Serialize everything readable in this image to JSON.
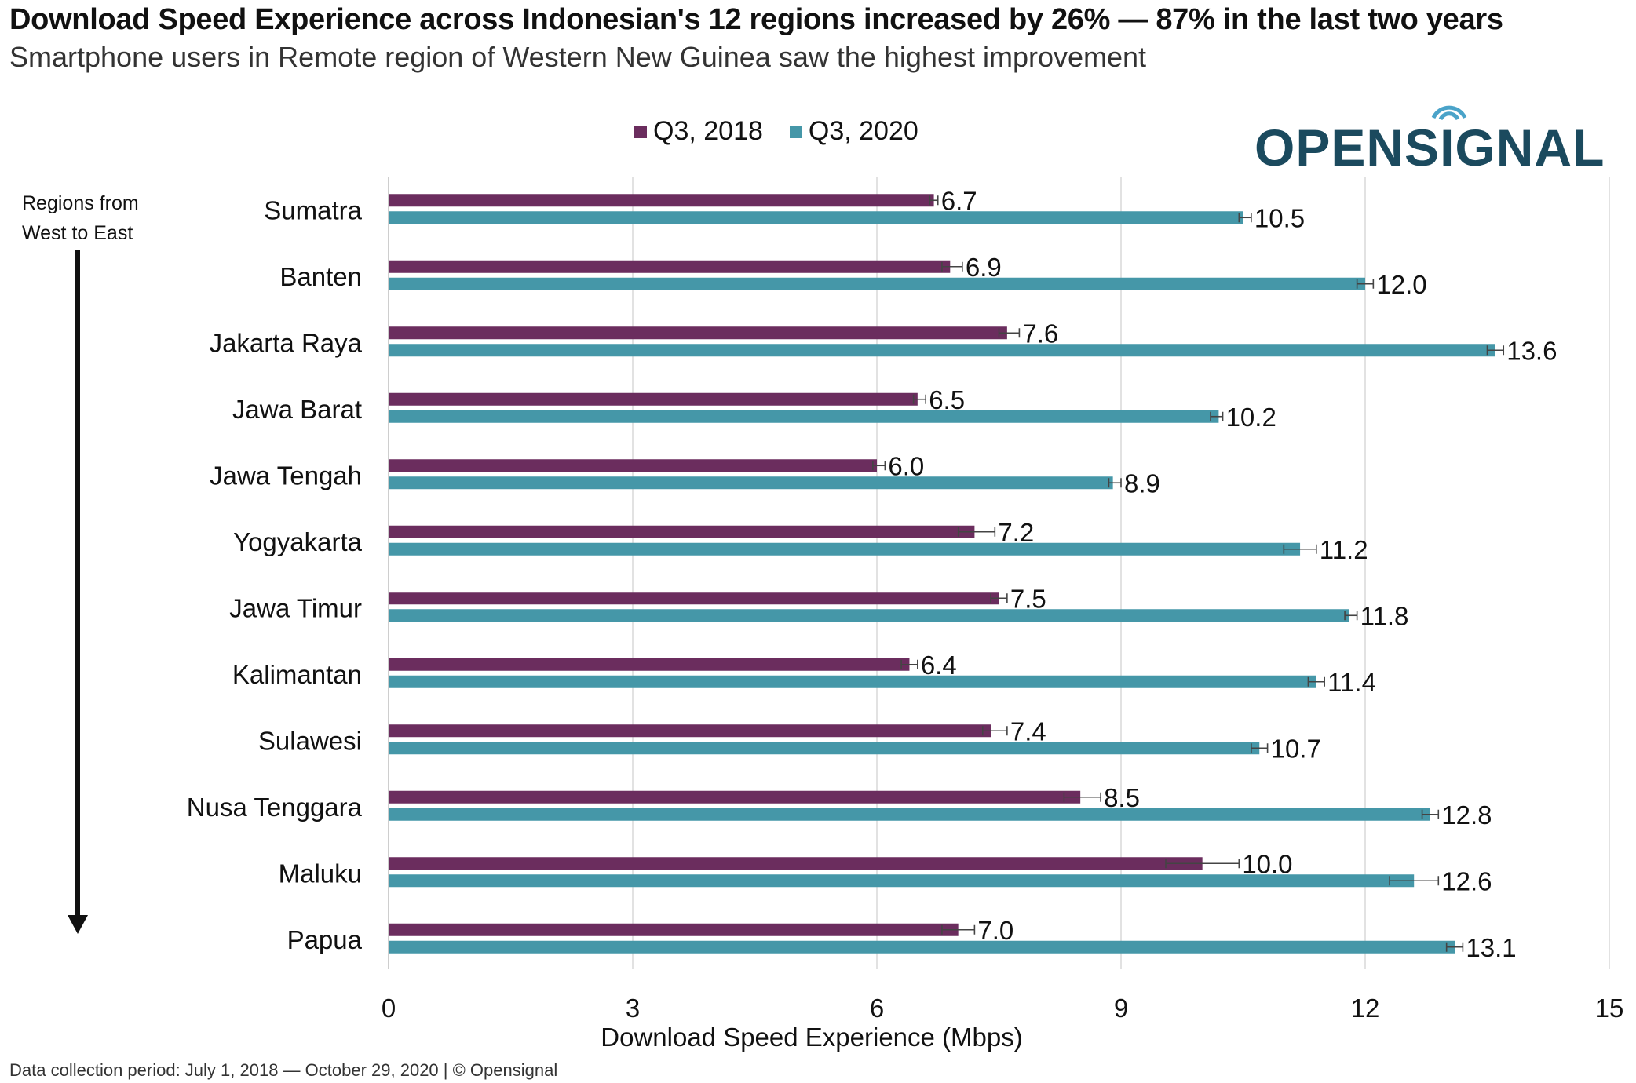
{
  "title": "Download Speed Experience across Indonesian's 12 regions increased by 26% — 87% in the last two years",
  "subtitle": "Smartphone users in Remote region of Western New Guinea saw the highest improvement",
  "logo_text": "OPENSIGNAL",
  "arrow_label": "Regions from West to East",
  "footer": "Data collection period: July 1, 2018 — October 29, 2020 | © Opensignal",
  "colors": {
    "q3_2018": "#6b2d5e",
    "q3_2020": "#4597a8",
    "logo": "#1b4a5e",
    "logo_waves": "#4aa3c9"
  },
  "chart_data": {
    "type": "bar",
    "orientation": "horizontal",
    "xlabel": "Download Speed Experience (Mbps)",
    "ylabel": "",
    "xlim": [
      0,
      15
    ],
    "xticks": [
      0,
      3,
      6,
      9,
      12,
      15
    ],
    "grid": true,
    "legend_position": "top-center",
    "categories": [
      "Sumatra",
      "Banten",
      "Jakarta Raya",
      "Jawa Barat",
      "Jawa Tengah",
      "Yogyakarta",
      "Jawa Timur",
      "Kalimantan",
      "Sulawesi",
      "Nusa Tenggara",
      "Maluku",
      "Papua"
    ],
    "series": [
      {
        "name": "Q3, 2018",
        "values": [
          6.7,
          6.9,
          7.6,
          6.5,
          6.0,
          7.2,
          7.5,
          6.4,
          7.4,
          8.5,
          10.0,
          7.0
        ],
        "labels": [
          "6.7",
          "6.9",
          "7.6",
          "6.5",
          "6.0",
          "7.2",
          "7.5",
          "6.4",
          "7.4",
          "8.5",
          "10.0",
          "7.0"
        ],
        "error_low": [
          6.65,
          6.8,
          7.5,
          6.45,
          5.95,
          7.0,
          7.4,
          6.3,
          7.3,
          8.3,
          9.55,
          6.8
        ],
        "error_high": [
          6.75,
          7.05,
          7.75,
          6.6,
          6.1,
          7.45,
          7.6,
          6.5,
          7.6,
          8.75,
          10.45,
          7.2
        ]
      },
      {
        "name": "Q3, 2020",
        "values": [
          10.5,
          12.0,
          13.6,
          10.2,
          8.9,
          11.2,
          11.8,
          11.4,
          10.7,
          12.8,
          12.6,
          13.1
        ],
        "labels": [
          "10.5",
          "12.0",
          "13.6",
          "10.2",
          "8.9",
          "11.2",
          "11.8",
          "11.4",
          "10.7",
          "12.8",
          "12.6",
          "13.1"
        ],
        "error_low": [
          10.45,
          11.9,
          13.5,
          10.1,
          8.85,
          11.0,
          11.75,
          11.3,
          10.6,
          12.7,
          12.3,
          13.0
        ],
        "error_high": [
          10.6,
          12.1,
          13.7,
          10.25,
          9.0,
          11.4,
          11.9,
          11.5,
          10.8,
          12.9,
          12.9,
          13.2
        ]
      }
    ]
  }
}
